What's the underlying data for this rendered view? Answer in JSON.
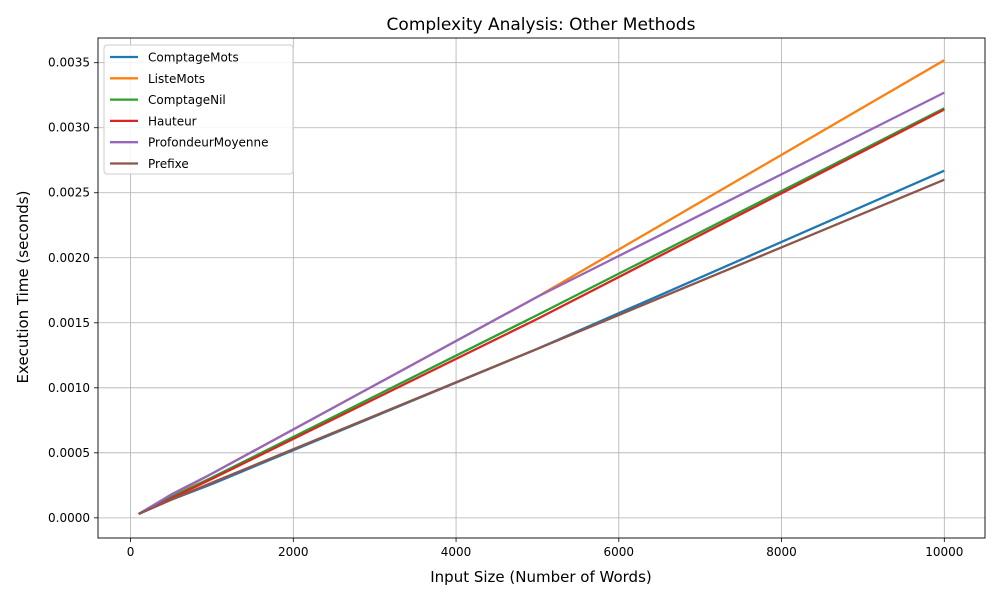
{
  "chart_data": {
    "type": "line",
    "title": "Complexity Analysis: Other Methods",
    "xlabel": "Input Size (Number of Words)",
    "ylabel": "Execution Time (seconds)",
    "xlim": [
      -400,
      10500
    ],
    "ylim": [
      -0.000155,
      0.00369
    ],
    "xticks": [
      0,
      2000,
      4000,
      6000,
      8000,
      10000
    ],
    "xtick_labels": [
      "0",
      "2000",
      "4000",
      "6000",
      "8000",
      "10000"
    ],
    "yticks": [
      0.0,
      0.0005,
      0.001,
      0.0015,
      0.002,
      0.0025,
      0.003,
      0.0035
    ],
    "ytick_labels": [
      "0.0000",
      "0.0005",
      "0.0010",
      "0.0015",
      "0.0020",
      "0.0025",
      "0.0030",
      "0.0035"
    ],
    "grid": true,
    "legend_position": "top-left",
    "x": [
      100,
      500,
      1000,
      5000,
      10000
    ],
    "series": [
      {
        "name": "ComptageMots",
        "color": "#1f77b4",
        "values": [
          3e-05,
          0.00014,
          0.00026,
          0.0013,
          0.00267
        ]
      },
      {
        "name": "ListeMots",
        "color": "#ff7f0e",
        "values": [
          3e-05,
          0.00017,
          0.00034,
          0.0017,
          0.00352
        ]
      },
      {
        "name": "ComptageNil",
        "color": "#2ca02c",
        "values": [
          3e-05,
          0.00016,
          0.00031,
          0.00156,
          0.00315
        ]
      },
      {
        "name": "Hauteur",
        "color": "#d62728",
        "values": [
          3e-05,
          0.00015,
          0.0003,
          0.00153,
          0.00314
        ]
      },
      {
        "name": "ProfondeurMoyenne",
        "color": "#9467bd",
        "values": [
          3e-05,
          0.00018,
          0.00034,
          0.0017,
          0.00327
        ]
      },
      {
        "name": "Prefixe",
        "color": "#8c564b",
        "values": [
          3e-05,
          0.00014,
          0.00027,
          0.0013,
          0.0026
        ]
      }
    ]
  }
}
